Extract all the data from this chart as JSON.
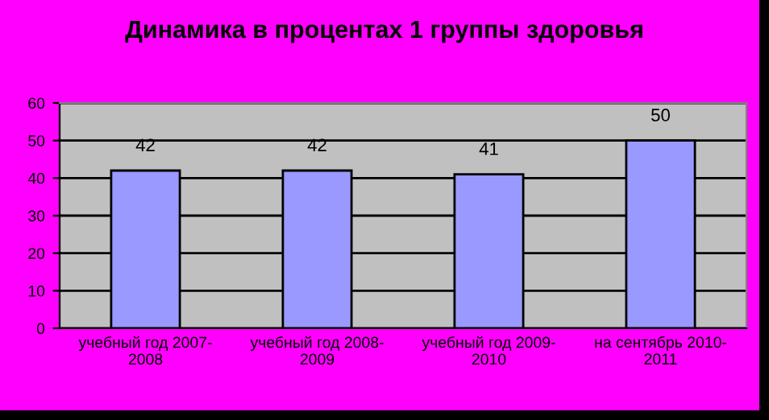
{
  "chart_data": {
    "type": "bar",
    "title": "Динамика в процентах 1 группы здоровья",
    "categories": [
      "учебный год 2007-\n2008",
      "учебный год 2008-\n2009",
      "учебный год 2009-\n2010",
      "на сентябрь 2010-\n2011"
    ],
    "values": [
      42,
      42,
      41,
      50
    ],
    "color": "#9999ff",
    "ylim": [
      0,
      60
    ],
    "yticks": [
      0,
      10,
      20,
      30,
      40,
      50,
      60
    ],
    "grid": "y",
    "data_labels": true
  }
}
